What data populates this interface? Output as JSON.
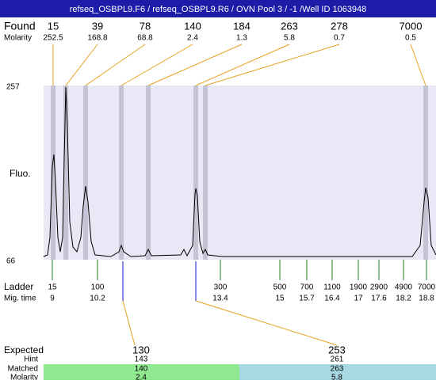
{
  "header": {
    "title": "refseq_OSBPL9.F6 / refseq_OSBPL9.R6 / OVN Pool 3 / -1 /Well ID 1063948"
  },
  "found": {
    "label": "Found",
    "molarity_label": "Molarity",
    "peaks": [
      {
        "size": 15,
        "molarity": 252.5
      },
      {
        "size": 39,
        "molarity": 168.8
      },
      {
        "size": 78,
        "molarity": 68.8
      },
      {
        "size": 140,
        "molarity": 2.4
      },
      {
        "size": 184,
        "molarity": 1.3
      },
      {
        "size": 263,
        "molarity": 5.8
      },
      {
        "size": 278,
        "molarity": 0.7
      },
      {
        "size": 7000,
        "molarity": 0.5
      }
    ]
  },
  "axis": {
    "label": "Fluo.",
    "max": 257,
    "min": 66
  },
  "ladder": {
    "label": "Ladder",
    "mig_label": "Mig. time",
    "marks": [
      {
        "size": 15,
        "time": 9
      },
      {
        "size": 100,
        "time": 10.2
      },
      {
        "size": 300,
        "time": 13.4
      },
      {
        "size": 500,
        "time": 15
      },
      {
        "size": 700,
        "time": 15.7
      },
      {
        "size": 1100,
        "time": 16.4
      },
      {
        "size": 1900,
        "time": 17
      },
      {
        "size": 2900,
        "time": 17.6
      },
      {
        "size": 4900,
        "time": 18.2
      },
      {
        "size": 7000,
        "time": 18.8
      }
    ]
  },
  "expected": {
    "label": "Expected",
    "hint_label": "Hint",
    "matched_label": "Matched",
    "molarity_label": "Molarity",
    "items": [
      {
        "expected": 130,
        "hint": 143,
        "matched": 140,
        "molarity": 2.4
      },
      {
        "expected": 253,
        "hint": 261,
        "matched": 263,
        "molarity": 5.8
      }
    ]
  }
}
